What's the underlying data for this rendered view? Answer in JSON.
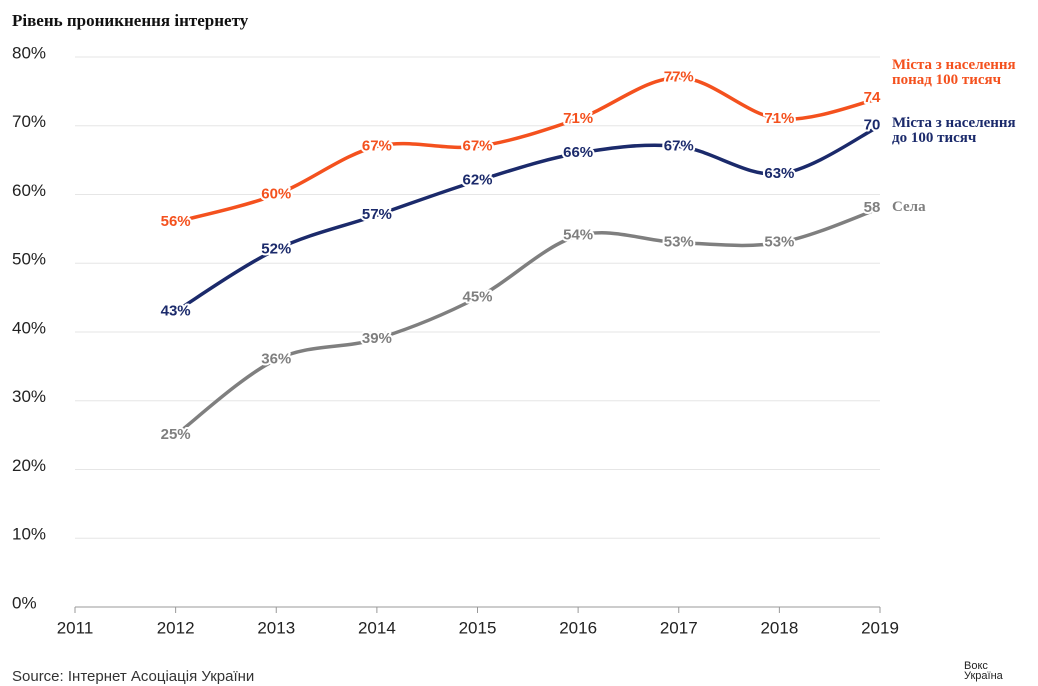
{
  "chart_data": {
    "type": "line",
    "title": "Рівень проникнення інтернету",
    "source": "Source: Інтернет Асоціація України",
    "logo": "Вокс Україна",
    "x": [
      2012,
      2013,
      2014,
      2015,
      2016,
      2017,
      2018,
      2019
    ],
    "xlim": [
      2011,
      2019
    ],
    "xticks": [
      2011,
      2012,
      2013,
      2014,
      2015,
      2016,
      2017,
      2018,
      2019
    ],
    "ylim": [
      0,
      80
    ],
    "yticks": [
      {
        "value": 0,
        "label": "0%"
      },
      {
        "value": 10,
        "label": "10%"
      },
      {
        "value": 20,
        "label": "20%"
      },
      {
        "value": 30,
        "label": "30%"
      },
      {
        "value": 40,
        "label": "40%"
      },
      {
        "value": 50,
        "label": "50%"
      },
      {
        "value": 60,
        "label": "60%"
      },
      {
        "value": 70,
        "label": "70%"
      },
      {
        "value": 80,
        "label": "80%"
      }
    ],
    "grid": true,
    "series": [
      {
        "name": "Міста з населення понад 100 тисяч",
        "color": "#f4511e",
        "values": [
          56,
          60,
          67,
          67,
          71,
          77,
          71,
          74
        ],
        "value_labels": [
          "56%",
          "60%",
          "67%",
          "67%",
          "71%",
          "77%",
          "71%",
          "74"
        ]
      },
      {
        "name": "Міста з населення до 100 тисяч",
        "color": "#1b2a6b",
        "values": [
          43,
          52,
          57,
          62,
          66,
          67,
          63,
          70
        ],
        "value_labels": [
          "43%",
          "52%",
          "57%",
          "62%",
          "66%",
          "67%",
          "63%",
          "70"
        ]
      },
      {
        "name": "Села",
        "color": "#7f7f7f",
        "values": [
          25,
          36,
          39,
          45,
          54,
          53,
          53,
          58
        ],
        "value_labels": [
          "25%",
          "36%",
          "39%",
          "45%",
          "54%",
          "53%",
          "53%",
          "58"
        ]
      }
    ]
  }
}
